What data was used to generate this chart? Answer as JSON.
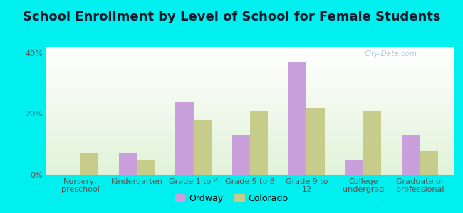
{
  "title": "School Enrollment by Level of School for Female Students",
  "categories": [
    "Nursery,\npreschool",
    "Kindergarten",
    "Grade 1 to 4",
    "Grade 5 to 8",
    "Grade 9 to\n12",
    "College\nundergrad",
    "Graduate or\nprofessional"
  ],
  "ordway": [
    0,
    7,
    24,
    13,
    37,
    5,
    13
  ],
  "colorado": [
    7,
    5,
    18,
    21,
    22,
    21,
    8
  ],
  "ordway_color": "#c9a0dc",
  "colorado_color": "#c8cc8a",
  "background_color": "#00efef",
  "ytick_labels": [
    "0%",
    "20%",
    "40%"
  ],
  "ylabel_ticks": [
    0,
    20,
    40
  ],
  "ylim": [
    0,
    42
  ],
  "bar_width": 0.32,
  "legend_ordway": "Ordway",
  "legend_colorado": "Colorado",
  "title_fontsize": 13,
  "tick_fontsize": 8,
  "legend_fontsize": 9,
  "watermark": "City-Data.com"
}
